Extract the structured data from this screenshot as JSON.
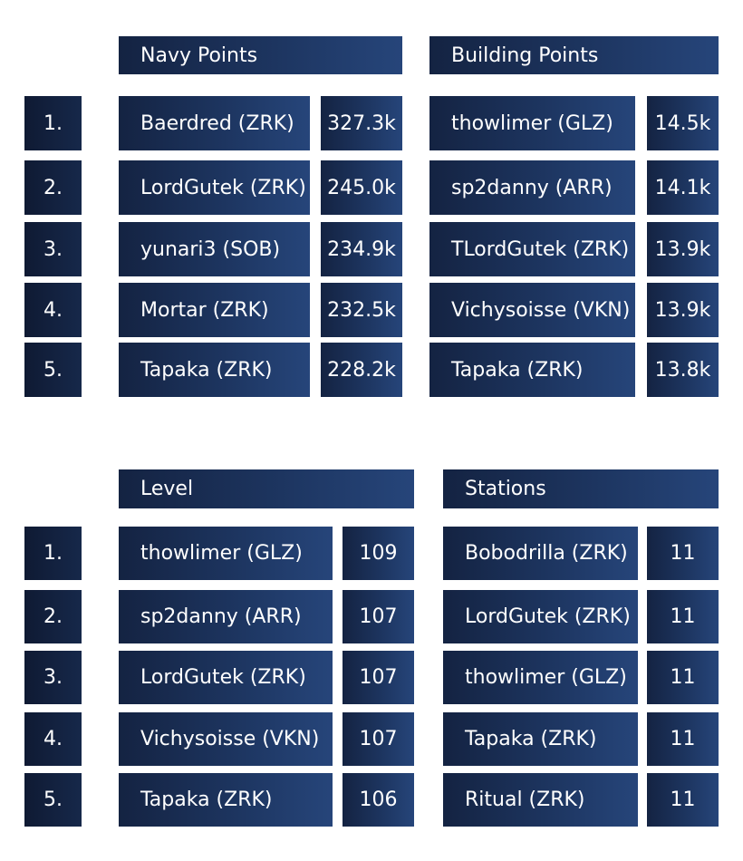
{
  "sections": {
    "navy": {
      "title": "Navy Points",
      "rows": [
        {
          "name": "Baerdred (ZRK)",
          "value": "327.3k"
        },
        {
          "name": "LordGutek (ZRK)",
          "value": "245.0k"
        },
        {
          "name": "yunari3 (SOB)",
          "value": "234.9k"
        },
        {
          "name": "Mortar (ZRK)",
          "value": "232.5k"
        },
        {
          "name": "Tapaka (ZRK)",
          "value": "228.2k"
        }
      ]
    },
    "building": {
      "title": "Building Points",
      "rows": [
        {
          "name": "thowlimer (GLZ)",
          "value": "14.5k"
        },
        {
          "name": "sp2danny (ARR)",
          "value": "14.1k"
        },
        {
          "name": "TLordGutek (ZRK)",
          "value": "13.9k"
        },
        {
          "name": "Vichysoisse (VKN)",
          "value": "13.9k"
        },
        {
          "name": "Tapaka (ZRK)",
          "value": "13.8k"
        }
      ]
    },
    "level": {
      "title": "Level",
      "rows": [
        {
          "name": "thowlimer (GLZ)",
          "value": "109"
        },
        {
          "name": "sp2danny (ARR)",
          "value": "107"
        },
        {
          "name": "LordGutek (ZRK)",
          "value": "107"
        },
        {
          "name": "Vichysoisse (VKN)",
          "value": "107"
        },
        {
          "name": "Tapaka (ZRK)",
          "value": "106"
        }
      ]
    },
    "stations": {
      "title": "Stations",
      "rows": [
        {
          "name": "Bobodrilla (ZRK)",
          "value": "11"
        },
        {
          "name": "LordGutek (ZRK)",
          "value": "11"
        },
        {
          "name": "thowlimer (GLZ)",
          "value": "11"
        },
        {
          "name": "Tapaka (ZRK)",
          "value": "11"
        },
        {
          "name": "Ritual (ZRK)",
          "value": "11"
        }
      ]
    }
  },
  "ranks": [
    "1.",
    "2.",
    "3.",
    "4.",
    "5."
  ]
}
